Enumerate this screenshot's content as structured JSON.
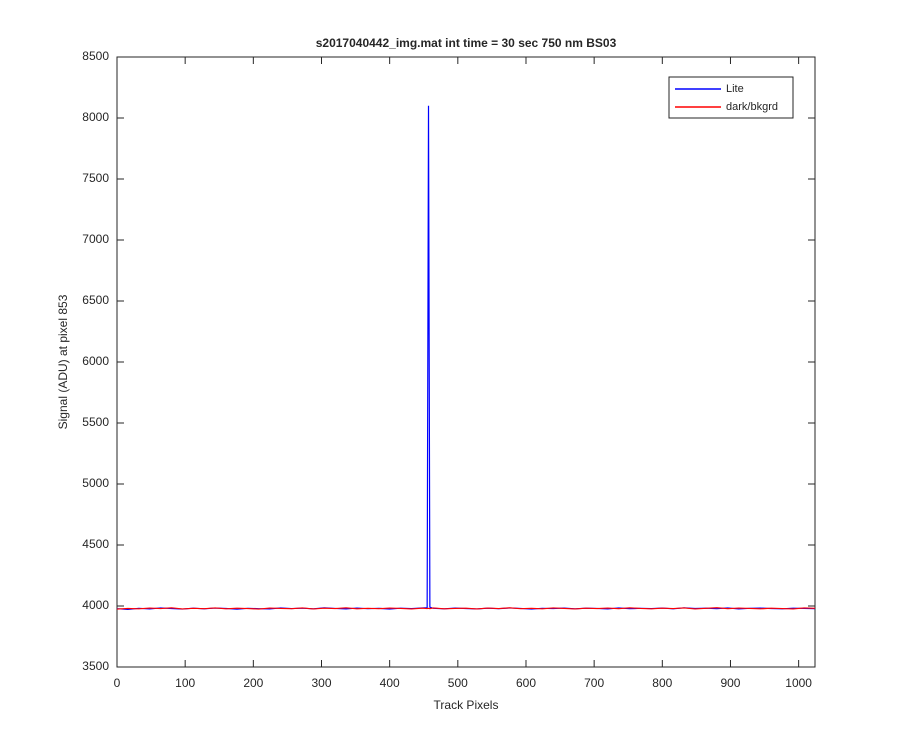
{
  "chart_data": {
    "type": "line",
    "title": "s2017040442_img.mat int time = 30 sec  750 nm BS03",
    "xlabel": "Track Pixels",
    "ylabel": "Signal (ADU) at pixel 853",
    "x": [
      0,
      16,
      32,
      48,
      64,
      80,
      96,
      112,
      128,
      144,
      160,
      176,
      192,
      208,
      224,
      240,
      256,
      272,
      288,
      304,
      320,
      336,
      352,
      368,
      384,
      400,
      416,
      432,
      448,
      455,
      457,
      459,
      464,
      480,
      496,
      512,
      528,
      544,
      560,
      576,
      592,
      608,
      624,
      640,
      656,
      672,
      688,
      704,
      720,
      736,
      752,
      768,
      784,
      800,
      816,
      832,
      848,
      864,
      880,
      896,
      912,
      928,
      944,
      960,
      976,
      992,
      1008,
      1024
    ],
    "series": [
      {
        "name": "Lite",
        "color": "#0000ff",
        "values": [
          3978,
          3972,
          3981,
          3976,
          3984,
          3979,
          3975,
          3982,
          3977,
          3983,
          3980,
          3974,
          3981,
          3978,
          3976,
          3984,
          3979,
          3982,
          3977,
          3985,
          3980,
          3976,
          3983,
          3978,
          3981,
          3975,
          3982,
          3979,
          3984,
          3986,
          8100,
          3990,
          3981,
          3977,
          3983,
          3979,
          3976,
          3982,
          3978,
          3984,
          3980,
          3975,
          3981,
          3979,
          3983,
          3977,
          3982,
          3980,
          3976,
          3984,
          3978,
          3981,
          3979,
          3983,
          3977,
          3985,
          3980,
          3982,
          3978,
          3984,
          3976,
          3981,
          3983,
          3979,
          3977,
          3982,
          3980,
          3978
        ]
      },
      {
        "name": "dark/bkgrd",
        "color": "#ff0000",
        "values": [
          3975,
          3980,
          3977,
          3983,
          3979,
          3985,
          3976,
          3981,
          3978,
          3984,
          3977,
          3982,
          3979,
          3975,
          3983,
          3980,
          3978,
          3984,
          3976,
          3982,
          3979,
          3985,
          3977,
          3981,
          3978,
          3983,
          3980,
          3976,
          3982,
          3979,
          3981,
          3978,
          3984,
          3977,
          3980,
          3982,
          3976,
          3983,
          3979,
          3985,
          3978,
          3981,
          3977,
          3984,
          3980,
          3976,
          3982,
          3979,
          3983,
          3978,
          3985,
          3980,
          3977,
          3982,
          3979,
          3984,
          3976,
          3981,
          3986,
          3978,
          3983,
          3980,
          3977,
          3982,
          3979,
          3976,
          3984,
          3981
        ]
      }
    ],
    "xlim": [
      0,
      1024
    ],
    "xticks": [
      0,
      100,
      200,
      300,
      400,
      500,
      600,
      700,
      800,
      900,
      1000
    ],
    "ylim": [
      3500,
      8500
    ],
    "yticks": [
      3500,
      4000,
      4500,
      5000,
      5500,
      6000,
      6500,
      7000,
      7500,
      8000,
      8500
    ],
    "legend": "upper right"
  }
}
